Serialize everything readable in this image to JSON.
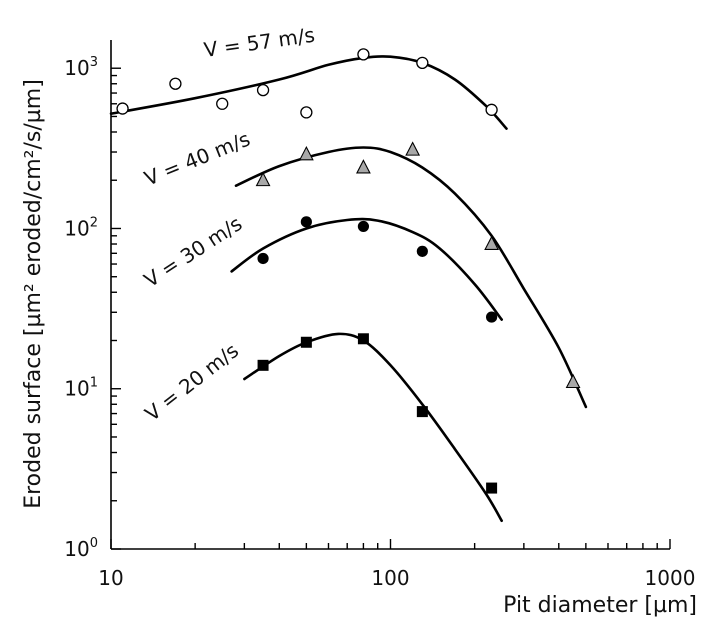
{
  "chart_data": {
    "type": "scatter",
    "xlabel": "Pit diameter [µm]",
    "ylabel": "Eroded surface [µm² eroded/cm²/s/µm]",
    "xscale": "log",
    "yscale": "log",
    "xlim": [
      10,
      1000
    ],
    "ylim": [
      1,
      1500
    ],
    "grid": false,
    "x_ticks": [
      {
        "value": 10,
        "label": "10"
      },
      {
        "value": 100,
        "label": "100"
      },
      {
        "value": 1000,
        "label": "1000"
      }
    ],
    "y_ticks": [
      {
        "value": 1,
        "base": "10",
        "exp": "0"
      },
      {
        "value": 10,
        "base": "10",
        "exp": "1"
      },
      {
        "value": 100,
        "base": "10",
        "exp": "2"
      },
      {
        "value": 1000,
        "base": "10",
        "exp": "3"
      }
    ],
    "series": [
      {
        "name": "V = 57 m/s",
        "marker": "circle-open",
        "points": [
          [
            11,
            560
          ],
          [
            17,
            800
          ],
          [
            25,
            600
          ],
          [
            35,
            730
          ],
          [
            50,
            530
          ],
          [
            80,
            1220
          ],
          [
            130,
            1080
          ],
          [
            230,
            550
          ]
        ],
        "fit": [
          [
            10,
            520
          ],
          [
            20,
            650
          ],
          [
            40,
            850
          ],
          [
            60,
            1050
          ],
          [
            80,
            1160
          ],
          [
            100,
            1180
          ],
          [
            130,
            1080
          ],
          [
            170,
            850
          ],
          [
            220,
            580
          ],
          [
            260,
            420
          ]
        ]
      },
      {
        "name": "V = 40 m/s",
        "marker": "triangle-grey",
        "points": [
          [
            35,
            200
          ],
          [
            50,
            290
          ],
          [
            80,
            240
          ],
          [
            120,
            310
          ],
          [
            230,
            80
          ],
          [
            450,
            11
          ]
        ],
        "fit": [
          [
            28,
            185
          ],
          [
            40,
            245
          ],
          [
            60,
            300
          ],
          [
            80,
            320
          ],
          [
            100,
            300
          ],
          [
            130,
            240
          ],
          [
            170,
            165
          ],
          [
            230,
            90
          ],
          [
            300,
            42
          ],
          [
            400,
            18
          ],
          [
            500,
            7.7
          ]
        ]
      },
      {
        "name": "V = 30 m/s",
        "marker": "circle-filled",
        "points": [
          [
            35,
            65
          ],
          [
            50,
            110
          ],
          [
            80,
            103
          ],
          [
            130,
            72
          ],
          [
            230,
            28
          ]
        ],
        "fit": [
          [
            27,
            54
          ],
          [
            35,
            75
          ],
          [
            50,
            100
          ],
          [
            70,
            113
          ],
          [
            90,
            112
          ],
          [
            120,
            95
          ],
          [
            150,
            75
          ],
          [
            200,
            45
          ],
          [
            250,
            27
          ]
        ]
      },
      {
        "name": "V = 20 m/s",
        "marker": "square-filled",
        "points": [
          [
            35,
            14
          ],
          [
            50,
            19.5
          ],
          [
            80,
            20.5
          ],
          [
            130,
            7.2
          ],
          [
            230,
            2.4
          ]
        ],
        "fit": [
          [
            30,
            11.5
          ],
          [
            40,
            16
          ],
          [
            50,
            19.5
          ],
          [
            65,
            22
          ],
          [
            80,
            20
          ],
          [
            100,
            14
          ],
          [
            130,
            8
          ],
          [
            170,
            4.2
          ],
          [
            220,
            2.2
          ],
          [
            250,
            1.5
          ]
        ]
      }
    ]
  }
}
